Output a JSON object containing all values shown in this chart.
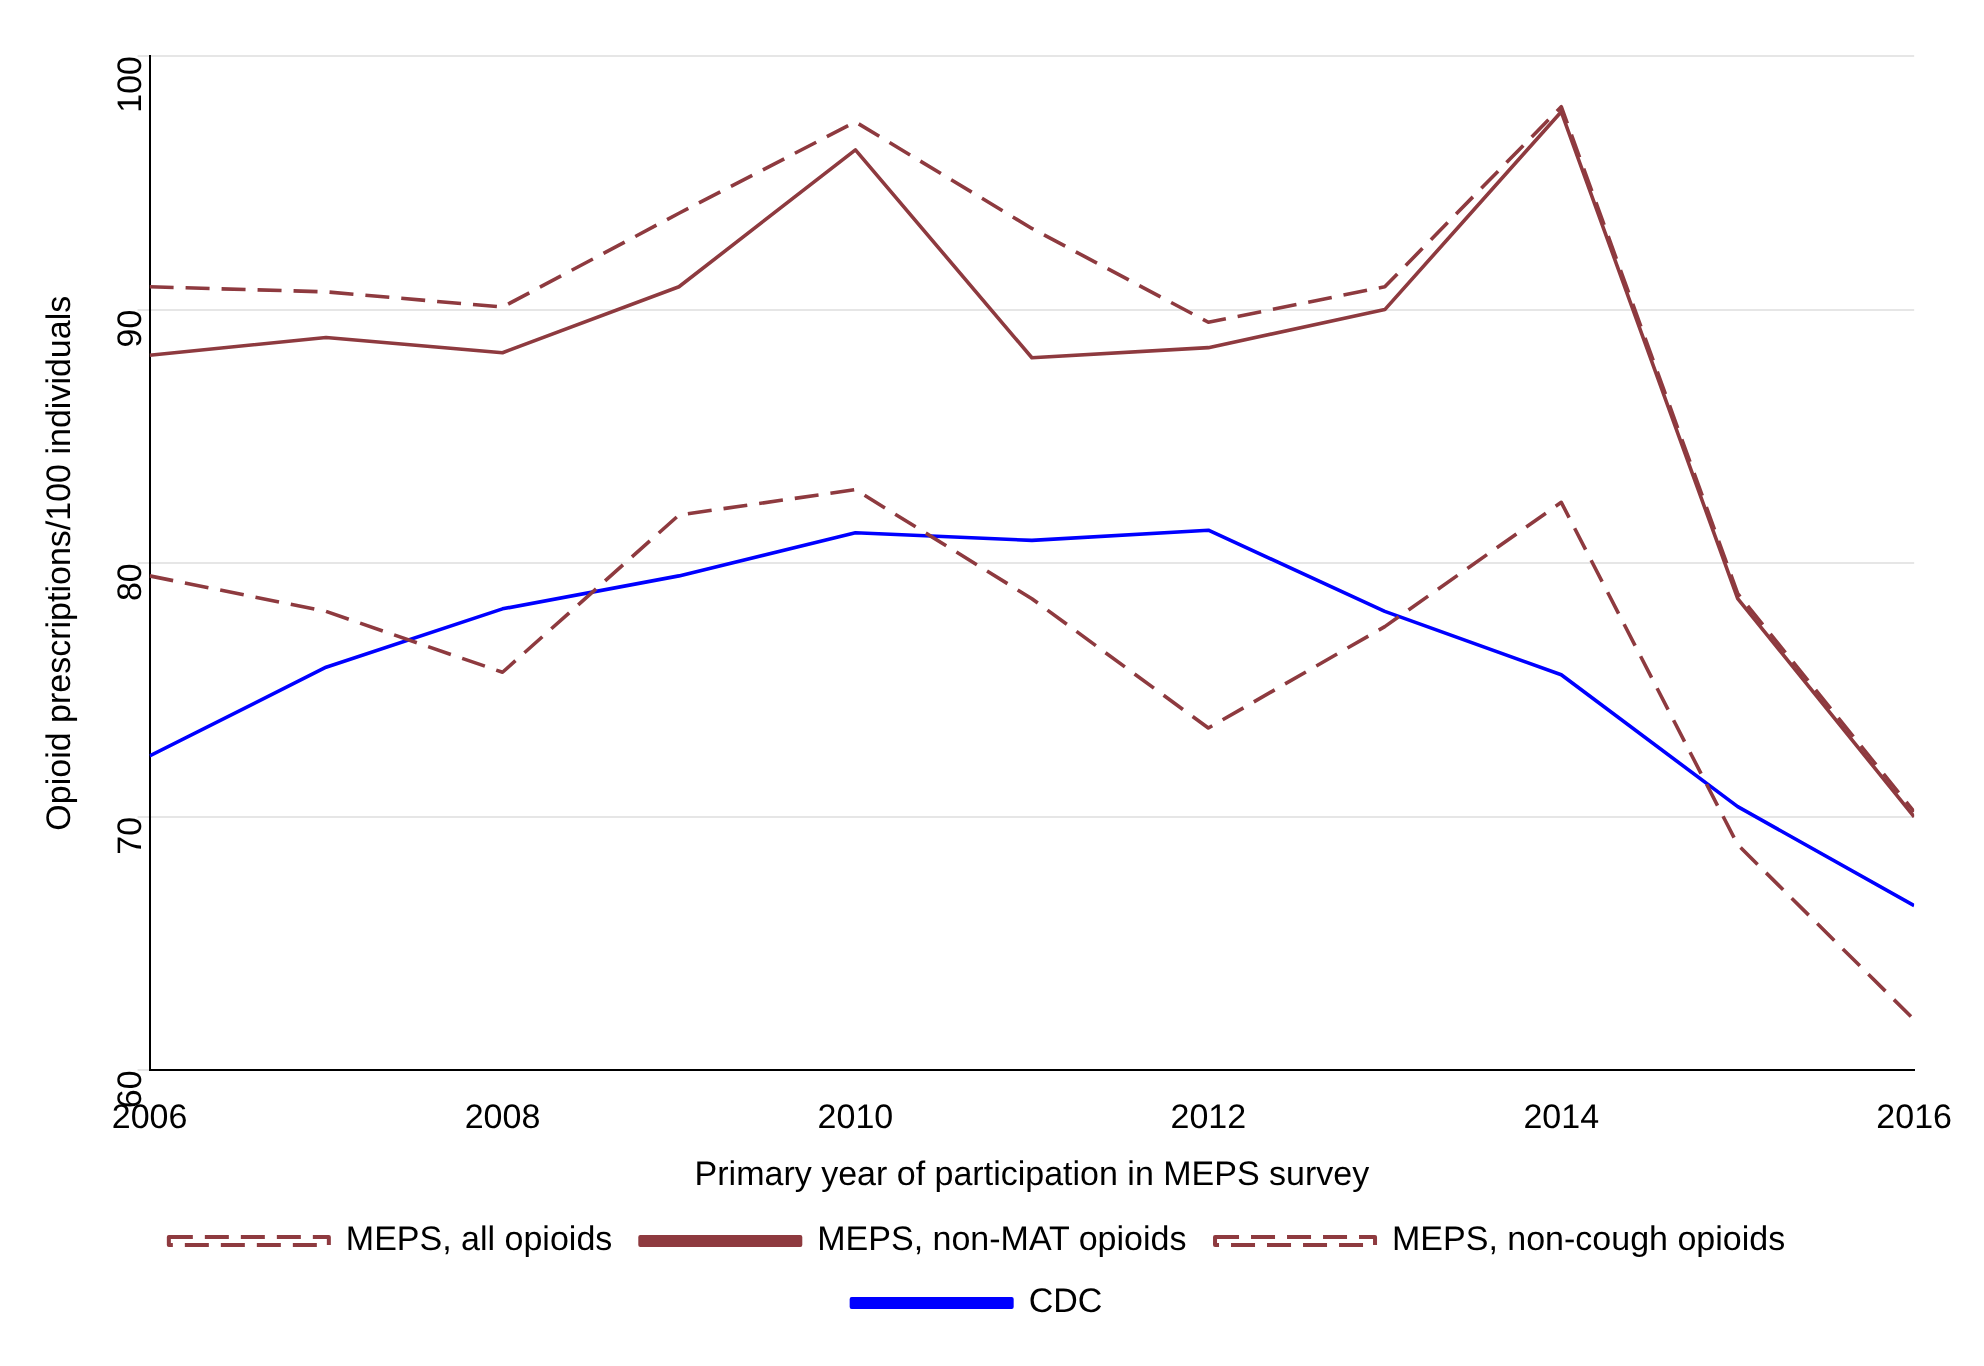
{
  "chart_data": {
    "type": "line",
    "xlabel": "Primary year of participation in MEPS survey",
    "ylabel": "Opioid prescriptions/100 individuals",
    "x": [
      2006,
      2007,
      2008,
      2009,
      2010,
      2011,
      2012,
      2013,
      2014,
      2015,
      2016
    ],
    "series": [
      {
        "name": "MEPS, all opioids",
        "color": "#8e3a3f",
        "line_style": "dashed",
        "values": [
          90.9,
          90.7,
          90.1,
          93.8,
          97.4,
          93.2,
          89.5,
          90.9,
          98.0,
          78.8,
          70.2
        ]
      },
      {
        "name": "MEPS, non-MAT opioids",
        "color": "#8e3a3f",
        "line_style": "solid",
        "values": [
          88.2,
          88.9,
          88.3,
          90.9,
          96.3,
          88.1,
          88.5,
          90.0,
          97.8,
          78.6,
          70.0
        ]
      },
      {
        "name": "MEPS, non-cough opioids",
        "color": "#8e3a3f",
        "line_style": "dashed",
        "values": [
          79.5,
          78.1,
          75.7,
          81.9,
          82.9,
          78.6,
          73.5,
          77.5,
          82.4,
          68.9,
          62.0
        ]
      },
      {
        "name": "CDC",
        "color": "#0000ff",
        "line_style": "solid",
        "values": [
          72.4,
          75.9,
          78.2,
          79.5,
          81.2,
          80.9,
          81.3,
          78.1,
          75.6,
          70.4,
          66.5
        ]
      }
    ],
    "xlim": [
      2006,
      2016
    ],
    "xticks": [
      2006,
      2008,
      2010,
      2012,
      2014,
      2016
    ],
    "ylim": [
      60,
      100
    ],
    "yticks": [
      60,
      70,
      80,
      90,
      100
    ],
    "grid": "y",
    "legend": "bottom",
    "marker": "none"
  }
}
